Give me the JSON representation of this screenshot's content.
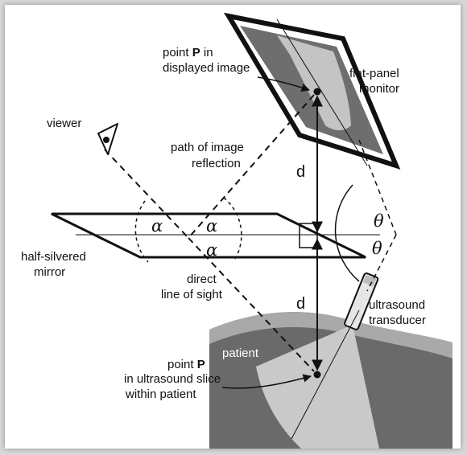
{
  "labels": {
    "point_p_displayed_line1": "point ",
    "point_p_displayed_bold": "P",
    "point_p_displayed_line1_end": " in",
    "point_p_displayed_line2": "displayed image",
    "monitor_line1": "flat-panel",
    "monitor_line2": "monitor",
    "viewer": "viewer",
    "path_line1": "path of image",
    "path_line2": "reflection",
    "mirror_line1": "half-silvered",
    "mirror_line2": "mirror",
    "sight_line1": "direct",
    "sight_line2": "line of sight",
    "transducer_line1": "ultrasound",
    "transducer_line2": "transducer",
    "patient": "patient",
    "point_p_slice_line1": "point ",
    "point_p_slice_bold": "P",
    "point_p_slice_line2": "in ultrasound slice",
    "point_p_slice_line3": "within patient",
    "distance_upper": "d",
    "distance_lower": "d",
    "alpha_1": "α",
    "alpha_2": "α",
    "alpha_3": "α",
    "theta_1": "θ",
    "theta_2": "θ"
  },
  "colors": {
    "background": "#ffffff",
    "outer": "#d8d8d8",
    "line": "#111111",
    "monitor_screen": "#6e6e6e",
    "monitor_image": "#c4c4c4",
    "patient_body": "#6a6a6a",
    "patient_skin": "#a9a9a9",
    "ultrasound_slice": "#cfcfcf",
    "transducer": "#e6e6e6"
  }
}
